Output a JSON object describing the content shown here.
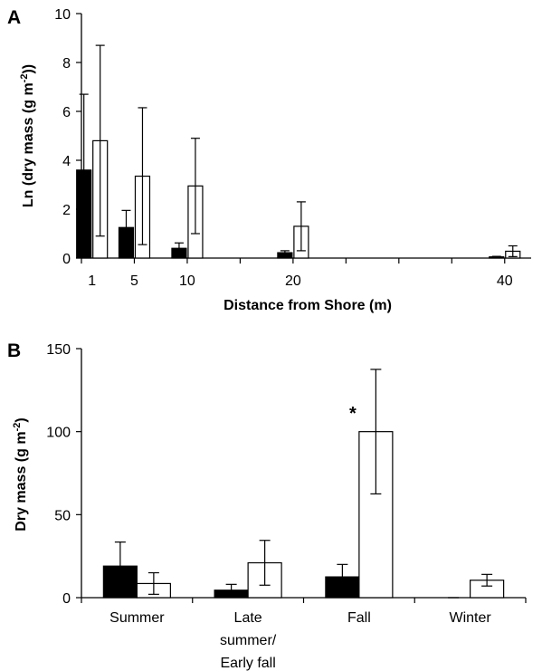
{
  "chart_data": [
    {
      "panel": "A",
      "type": "bar",
      "categories": [
        "1",
        "5",
        "10",
        "20",
        "40"
      ],
      "x_ticks": [
        0,
        5,
        10,
        15,
        20,
        25,
        30,
        35,
        40
      ],
      "series": [
        {
          "values": [
            3.6,
            1.25,
            0.4,
            0.22,
            0.05
          ],
          "errors": [
            3.1,
            0.7,
            0.22,
            0.08,
            0.02
          ],
          "color": "#000000"
        },
        {
          "values": [
            4.8,
            3.35,
            2.95,
            1.3,
            0.28
          ],
          "errors": [
            3.9,
            2.8,
            1.95,
            1.0,
            0.22
          ],
          "color": "#ffffff"
        }
      ],
      "xlabel": "Distance from Shore (m)",
      "ylabel": "Ln (dry mass (g m-2))",
      "ylim": [
        0,
        10
      ],
      "yticks": [
        0,
        2,
        4,
        6,
        8,
        10
      ],
      "grid": false
    },
    {
      "panel": "B",
      "type": "bar",
      "categories": [
        [
          "Summer"
        ],
        [
          "Late",
          "summer/",
          "Early fall"
        ],
        [
          "Fall"
        ],
        [
          "Winter"
        ]
      ],
      "series": [
        {
          "values": [
            19,
            4.5,
            12.5,
            0
          ],
          "errors": [
            14.5,
            3.5,
            7.5,
            0
          ],
          "color": "#000000"
        },
        {
          "values": [
            8.5,
            21,
            100,
            10.5
          ],
          "errors": [
            6.5,
            13.5,
            37.5,
            3.5
          ],
          "color": "#ffffff"
        }
      ],
      "annotations": [
        {
          "text": "*",
          "category_index": 2
        }
      ],
      "ylabel": "Dry mass (g m-2)",
      "ylim": [
        0,
        150
      ],
      "yticks": [
        0,
        50,
        100,
        150
      ],
      "grid": false
    }
  ]
}
